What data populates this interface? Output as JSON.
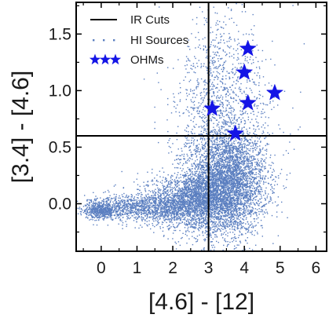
{
  "chart_data": {
    "type": "scatter",
    "title": "",
    "xlabel": "[4.6] - [12]",
    "ylabel": "[3.4] - [4.6]",
    "xlim": [
      -0.7,
      6.3
    ],
    "ylim": [
      -0.42,
      1.78
    ],
    "x_ticks": [
      0,
      1,
      2,
      3,
      4,
      5,
      6
    ],
    "y_ticks": [
      0.0,
      0.5,
      1.0,
      1.5
    ],
    "x_tick_labels": [
      "0",
      "1",
      "2",
      "3",
      "4",
      "5",
      "6"
    ],
    "y_tick_labels": [
      "0.0",
      "0.5",
      "1.0",
      "1.5"
    ],
    "grid": false,
    "legend_position": "top-left",
    "legend": [
      {
        "label": "IR Cuts",
        "marker": "line"
      },
      {
        "label": "HI Sources",
        "marker": "dots"
      },
      {
        "label": "OHMs",
        "marker": "stars"
      }
    ],
    "cuts": {
      "x": 3.0,
      "y": 0.6
    },
    "series": [
      {
        "name": "HI Sources",
        "color": "#5b7fc0",
        "density_description": "dense cloud of several thousand small points",
        "clusters": [
          {
            "cx": 3.5,
            "cy": 0.18,
            "sx": 0.55,
            "sy": 0.22,
            "weight": 0.42
          },
          {
            "cx": 2.5,
            "cy": 0.03,
            "sx": 0.6,
            "sy": 0.12,
            "weight": 0.22
          },
          {
            "cx": 1.2,
            "cy": -0.03,
            "sx": 0.7,
            "sy": 0.06,
            "weight": 0.12
          },
          {
            "cx": 0.0,
            "cy": -0.05,
            "sx": 0.25,
            "sy": 0.04,
            "weight": 0.06
          },
          {
            "cx": 3.4,
            "cy": 0.65,
            "sx": 0.7,
            "sy": 0.45,
            "weight": 0.16
          },
          {
            "cx": 3.3,
            "cy": 1.2,
            "sx": 0.4,
            "sy": 0.3,
            "weight": 0.02
          }
        ]
      },
      {
        "name": "OHMs",
        "color": "#1414e6",
        "marker": "star",
        "points": [
          {
            "x": 4.1,
            "y": 1.37
          },
          {
            "x": 4.0,
            "y": 1.16
          },
          {
            "x": 4.85,
            "y": 0.98
          },
          {
            "x": 4.1,
            "y": 0.89
          },
          {
            "x": 3.1,
            "y": 0.84
          },
          {
            "x": 3.75,
            "y": 0.62
          }
        ]
      }
    ]
  }
}
